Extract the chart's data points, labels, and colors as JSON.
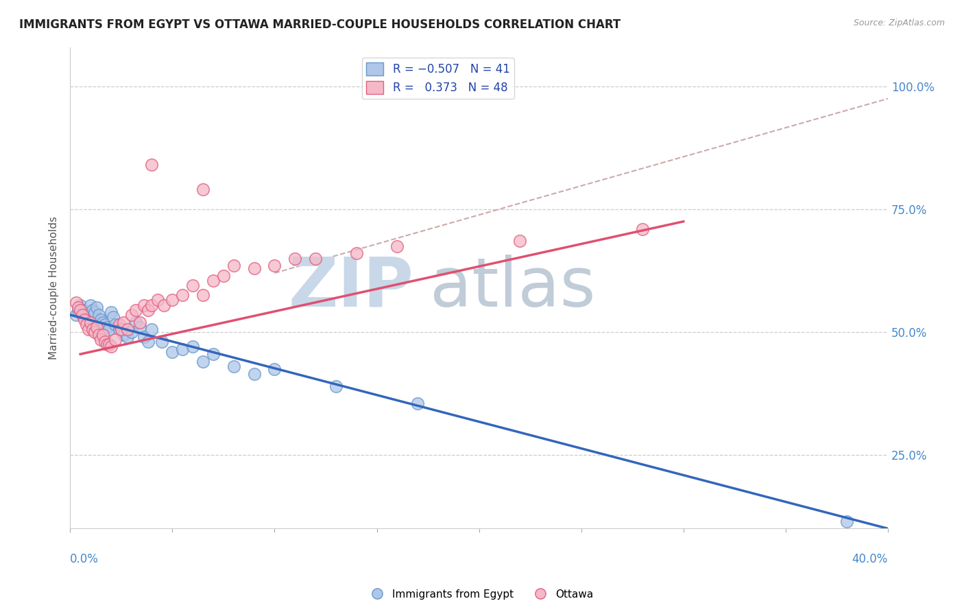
{
  "title": "IMMIGRANTS FROM EGYPT VS OTTAWA MARRIED-COUPLE HOUSEHOLDS CORRELATION CHART",
  "source": "Source: ZipAtlas.com",
  "ylabel": "Married-couple Households",
  "yticks": [
    0.25,
    0.5,
    0.75,
    1.0
  ],
  "ytick_labels": [
    "25.0%",
    "50.0%",
    "75.0%",
    "100.0%"
  ],
  "xmin": 0.0,
  "xmax": 0.4,
  "ymin": 0.1,
  "ymax": 1.08,
  "color_blue": "#aec6e8",
  "color_blue_border": "#6699cc",
  "color_blue_line": "#3366bb",
  "color_pink": "#f5b8c8",
  "color_pink_border": "#e06080",
  "color_pink_line": "#e05070",
  "color_dashed": "#ccaaaa",
  "blue_scatter": [
    [
      0.003,
      0.535
    ],
    [
      0.004,
      0.545
    ],
    [
      0.005,
      0.555
    ],
    [
      0.006,
      0.545
    ],
    [
      0.007,
      0.535
    ],
    [
      0.008,
      0.525
    ],
    [
      0.009,
      0.52
    ],
    [
      0.01,
      0.555
    ],
    [
      0.011,
      0.545
    ],
    [
      0.012,
      0.54
    ],
    [
      0.013,
      0.55
    ],
    [
      0.014,
      0.535
    ],
    [
      0.015,
      0.525
    ],
    [
      0.016,
      0.52
    ],
    [
      0.017,
      0.515
    ],
    [
      0.018,
      0.51
    ],
    [
      0.019,
      0.505
    ],
    [
      0.02,
      0.54
    ],
    [
      0.021,
      0.53
    ],
    [
      0.022,
      0.515
    ],
    [
      0.024,
      0.505
    ],
    [
      0.026,
      0.495
    ],
    [
      0.028,
      0.49
    ],
    [
      0.03,
      0.5
    ],
    [
      0.032,
      0.52
    ],
    [
      0.034,
      0.51
    ],
    [
      0.036,
      0.49
    ],
    [
      0.038,
      0.48
    ],
    [
      0.04,
      0.505
    ],
    [
      0.045,
      0.48
    ],
    [
      0.05,
      0.46
    ],
    [
      0.055,
      0.465
    ],
    [
      0.06,
      0.47
    ],
    [
      0.065,
      0.44
    ],
    [
      0.07,
      0.455
    ],
    [
      0.08,
      0.43
    ],
    [
      0.09,
      0.415
    ],
    [
      0.1,
      0.425
    ],
    [
      0.13,
      0.39
    ],
    [
      0.17,
      0.355
    ],
    [
      0.38,
      0.115
    ]
  ],
  "pink_scatter": [
    [
      0.003,
      0.56
    ],
    [
      0.004,
      0.55
    ],
    [
      0.005,
      0.545
    ],
    [
      0.006,
      0.535
    ],
    [
      0.007,
      0.525
    ],
    [
      0.008,
      0.515
    ],
    [
      0.009,
      0.505
    ],
    [
      0.01,
      0.52
    ],
    [
      0.011,
      0.505
    ],
    [
      0.012,
      0.5
    ],
    [
      0.013,
      0.51
    ],
    [
      0.014,
      0.495
    ],
    [
      0.015,
      0.485
    ],
    [
      0.016,
      0.495
    ],
    [
      0.017,
      0.48
    ],
    [
      0.018,
      0.475
    ],
    [
      0.019,
      0.475
    ],
    [
      0.02,
      0.47
    ],
    [
      0.022,
      0.485
    ],
    [
      0.024,
      0.515
    ],
    [
      0.025,
      0.505
    ],
    [
      0.026,
      0.52
    ],
    [
      0.028,
      0.505
    ],
    [
      0.03,
      0.535
    ],
    [
      0.032,
      0.545
    ],
    [
      0.034,
      0.52
    ],
    [
      0.036,
      0.555
    ],
    [
      0.038,
      0.545
    ],
    [
      0.04,
      0.555
    ],
    [
      0.043,
      0.565
    ],
    [
      0.046,
      0.555
    ],
    [
      0.05,
      0.565
    ],
    [
      0.055,
      0.575
    ],
    [
      0.06,
      0.595
    ],
    [
      0.065,
      0.575
    ],
    [
      0.07,
      0.605
    ],
    [
      0.075,
      0.615
    ],
    [
      0.08,
      0.635
    ],
    [
      0.09,
      0.63
    ],
    [
      0.1,
      0.635
    ],
    [
      0.11,
      0.65
    ],
    [
      0.12,
      0.65
    ],
    [
      0.14,
      0.66
    ],
    [
      0.16,
      0.675
    ],
    [
      0.22,
      0.685
    ],
    [
      0.28,
      0.71
    ],
    [
      0.04,
      0.84
    ],
    [
      0.065,
      0.79
    ]
  ],
  "blue_line_x": [
    0.0,
    0.4
  ],
  "blue_line_y": [
    0.535,
    0.1
  ],
  "pink_line_x": [
    0.005,
    0.3
  ],
  "pink_line_y": [
    0.455,
    0.725
  ],
  "dashed_line_x": [
    0.1,
    0.4
  ],
  "dashed_line_y": [
    0.62,
    0.975
  ],
  "zip_color": "#c8d8e8",
  "atlas_color": "#c0ccd8"
}
